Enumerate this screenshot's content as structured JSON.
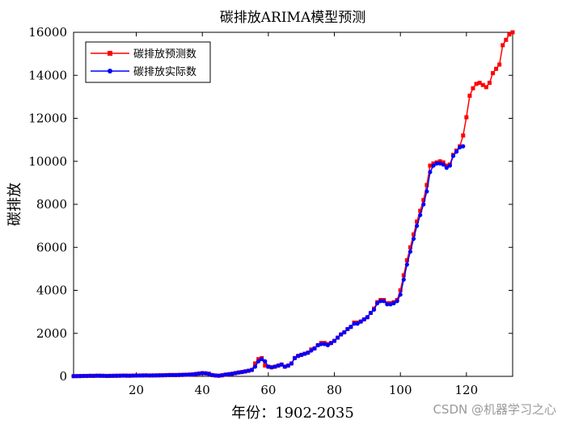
{
  "watermark": "CSDN @机器学习之心",
  "chart_data": {
    "type": "line",
    "title": "碳排放ARIMA模型预测",
    "xlabel": "年份：1902-2035",
    "ylabel": "碳排放",
    "xlim": [
      1,
      134
    ],
    "ylim": [
      0,
      16000
    ],
    "xticks": [
      20,
      40,
      60,
      80,
      100,
      120
    ],
    "yticks": [
      0,
      2000,
      4000,
      6000,
      8000,
      10000,
      12000,
      14000,
      16000
    ],
    "legend_position": "top-left",
    "series": [
      {
        "name": "碳排放预测数",
        "color": "#ff0000",
        "marker": "square",
        "x": [
          1,
          2,
          3,
          4,
          5,
          6,
          7,
          8,
          9,
          10,
          11,
          12,
          13,
          14,
          15,
          16,
          17,
          18,
          19,
          20,
          21,
          22,
          23,
          24,
          25,
          26,
          27,
          28,
          29,
          30,
          31,
          32,
          33,
          34,
          35,
          36,
          37,
          38,
          39,
          40,
          41,
          42,
          43,
          44,
          45,
          46,
          47,
          48,
          49,
          50,
          51,
          52,
          53,
          54,
          55,
          56,
          57,
          58,
          59,
          60,
          61,
          62,
          63,
          64,
          65,
          66,
          67,
          68,
          69,
          70,
          71,
          72,
          73,
          74,
          75,
          76,
          77,
          78,
          79,
          80,
          81,
          82,
          83,
          84,
          85,
          86,
          87,
          88,
          89,
          90,
          91,
          92,
          93,
          94,
          95,
          96,
          97,
          98,
          99,
          100,
          101,
          102,
          103,
          104,
          105,
          106,
          107,
          108,
          109,
          110,
          111,
          112,
          113,
          114,
          115,
          116,
          117,
          118,
          119,
          120,
          121,
          122,
          123,
          124,
          125,
          126,
          127,
          128,
          129,
          130,
          131,
          132,
          133,
          134
        ],
        "values": [
          10,
          12,
          15,
          18,
          20,
          25,
          22,
          30,
          28,
          25,
          20,
          22,
          25,
          28,
          30,
          35,
          32,
          30,
          35,
          38,
          40,
          42,
          45,
          40,
          42,
          45,
          48,
          50,
          55,
          60,
          62,
          60,
          65,
          70,
          75,
          80,
          90,
          110,
          130,
          150,
          140,
          120,
          60,
          40,
          30,
          50,
          80,
          100,
          120,
          150,
          180,
          200,
          230,
          260,
          300,
          600,
          800,
          850,
          500,
          450,
          420,
          450,
          500,
          550,
          450,
          500,
          600,
          850,
          950,
          1000,
          1050,
          1100,
          1250,
          1300,
          1450,
          1550,
          1550,
          1500,
          1550,
          1650,
          1800,
          1950,
          2050,
          2200,
          2300,
          2500,
          2500,
          2550,
          2650,
          2750,
          2950,
          3150,
          3450,
          3550,
          3550,
          3400,
          3400,
          3450,
          3550,
          4000,
          4700,
          5400,
          6000,
          6600,
          7200,
          7700,
          8200,
          8900,
          9800,
          9900,
          9950,
          10000,
          9950,
          9800,
          9850,
          10300,
          10500,
          10700,
          11200,
          12050,
          13050,
          13400,
          13600,
          13650,
          13550,
          13450,
          13650,
          14100,
          14300,
          14500,
          15400,
          15650,
          15900,
          16000
        ]
      },
      {
        "name": "碳排放实际数",
        "color": "#0000ff",
        "marker": "circle",
        "x": [
          1,
          2,
          3,
          4,
          5,
          6,
          7,
          8,
          9,
          10,
          11,
          12,
          13,
          14,
          15,
          16,
          17,
          18,
          19,
          20,
          21,
          22,
          23,
          24,
          25,
          26,
          27,
          28,
          29,
          30,
          31,
          32,
          33,
          34,
          35,
          36,
          37,
          38,
          39,
          40,
          41,
          42,
          43,
          44,
          45,
          46,
          47,
          48,
          49,
          50,
          51,
          52,
          53,
          54,
          55,
          56,
          57,
          58,
          59,
          60,
          61,
          62,
          63,
          64,
          65,
          66,
          67,
          68,
          69,
          70,
          71,
          72,
          73,
          74,
          75,
          76,
          77,
          78,
          79,
          80,
          81,
          82,
          83,
          84,
          85,
          86,
          87,
          88,
          89,
          90,
          91,
          92,
          93,
          94,
          95,
          96,
          97,
          98,
          99,
          100,
          101,
          102,
          103,
          104,
          105,
          106,
          107,
          108,
          109,
          110,
          111,
          112,
          113,
          114,
          115,
          116,
          117,
          118,
          119
        ],
        "values": [
          10,
          12,
          15,
          18,
          20,
          25,
          22,
          30,
          28,
          25,
          20,
          22,
          25,
          28,
          30,
          35,
          32,
          30,
          35,
          38,
          40,
          42,
          45,
          40,
          42,
          45,
          48,
          50,
          55,
          60,
          62,
          60,
          65,
          70,
          75,
          80,
          90,
          110,
          130,
          150,
          140,
          120,
          60,
          40,
          30,
          50,
          80,
          100,
          120,
          150,
          180,
          200,
          230,
          260,
          300,
          450,
          700,
          800,
          700,
          450,
          420,
          450,
          500,
          550,
          450,
          500,
          600,
          850,
          950,
          1000,
          1050,
          1100,
          1200,
          1300,
          1450,
          1500,
          1500,
          1450,
          1550,
          1650,
          1800,
          1950,
          2050,
          2200,
          2300,
          2450,
          2450,
          2550,
          2650,
          2750,
          2950,
          3100,
          3400,
          3500,
          3500,
          3350,
          3350,
          3400,
          3500,
          3800,
          4500,
          5200,
          5800,
          6400,
          7000,
          7500,
          8000,
          8600,
          9500,
          9800,
          9900,
          9900,
          9850,
          9700,
          9800,
          10250,
          10450,
          10650,
          10700
        ]
      }
    ]
  }
}
